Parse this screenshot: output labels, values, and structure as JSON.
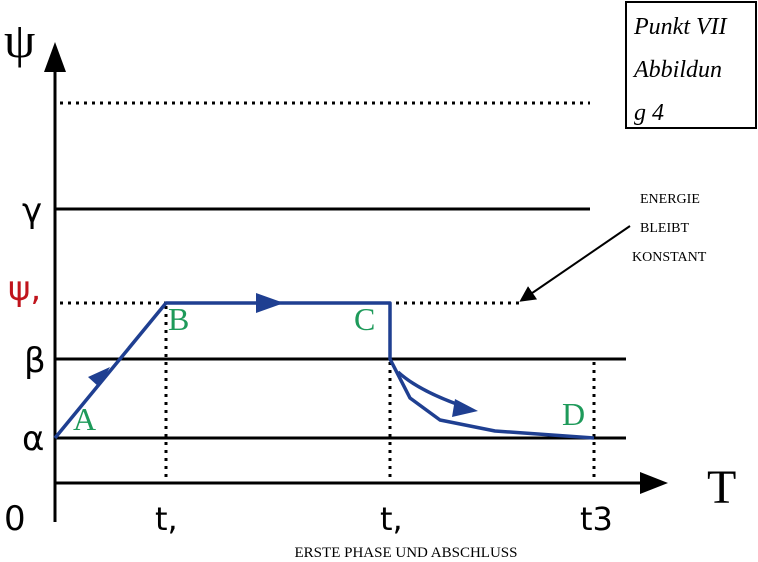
{
  "axes": {
    "y_label": "ψ",
    "x_label": "T",
    "origin_label": "0"
  },
  "y_levels": [
    {
      "label": "",
      "style": "dotted",
      "text_color": "#000000"
    },
    {
      "label": "γ",
      "style": "solid",
      "text_color": "#000000"
    },
    {
      "label": "ψ,",
      "style": "dotted",
      "text_color": "#c0141c"
    },
    {
      "label": "β",
      "style": "solid",
      "text_color": "#000000"
    },
    {
      "label": "α",
      "style": "solid",
      "text_color": "#000000"
    }
  ],
  "x_ticks": [
    "t,",
    "t,",
    "t3"
  ],
  "points": [
    {
      "label": "A",
      "color": "#1e9a5a"
    },
    {
      "label": "B",
      "color": "#1e9a5a"
    },
    {
      "label": "C",
      "color": "#1e9a5a"
    },
    {
      "label": "D",
      "color": "#1e9a5a"
    }
  ],
  "annotation": {
    "lines": [
      "ENERGIE",
      "BLEIBT",
      "KONSTANT"
    ]
  },
  "title_box": {
    "lines": [
      "Punkt VII",
      "Abbildun",
      "g 4"
    ]
  },
  "caption": "ERSTE PHASE UND ABSCHLUSS",
  "colors": {
    "path": "#1f3f91",
    "axis": "#000000",
    "point_label": "#1e9a5a",
    "psi_label": "#c0141c"
  }
}
